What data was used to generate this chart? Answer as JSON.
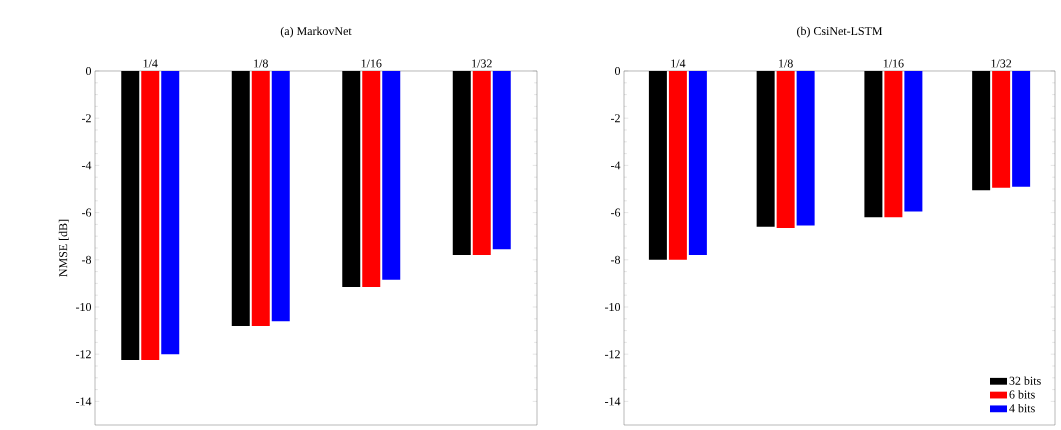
{
  "chart_data": [
    {
      "type": "bar",
      "title": "(a) MarkovNet",
      "ylabel": "NMSE [dB]",
      "categories": [
        "1/4",
        "1/8",
        "1/16",
        "1/32"
      ],
      "series": [
        {
          "color": "#000000",
          "values": [
            -12.25,
            -10.8,
            -9.15,
            -7.8
          ]
        },
        {
          "color": "#ff0000",
          "values": [
            -12.25,
            -10.8,
            -9.15,
            -7.8
          ]
        },
        {
          "color": "#0000ff",
          "values": [
            -12.0,
            -10.6,
            -8.85,
            -7.55
          ]
        }
      ],
      "ylim": [
        -15,
        0
      ],
      "yticks": [
        -14,
        -12,
        -10,
        -8,
        -6,
        -4,
        -2,
        0
      ],
      "grid": false
    },
    {
      "type": "bar",
      "title": "(b) CsiNet-LSTM",
      "categories": [
        "1/4",
        "1/8",
        "1/16",
        "1/32"
      ],
      "series": [
        {
          "name": "32 bits",
          "color": "#000000",
          "values": [
            -8.0,
            -6.6,
            -6.2,
            -5.05
          ]
        },
        {
          "name": "6 bits",
          "color": "#ff0000",
          "values": [
            -8.0,
            -6.65,
            -6.2,
            -4.95
          ]
        },
        {
          "name": "4 bits",
          "color": "#0000ff",
          "values": [
            -7.8,
            -6.55,
            -5.95,
            -4.9
          ]
        }
      ],
      "ylim": [
        -15,
        0
      ],
      "yticks": [
        -14,
        -12,
        -10,
        -8,
        -6,
        -4,
        -2,
        0
      ],
      "grid": false,
      "legend": "bottom right"
    }
  ]
}
